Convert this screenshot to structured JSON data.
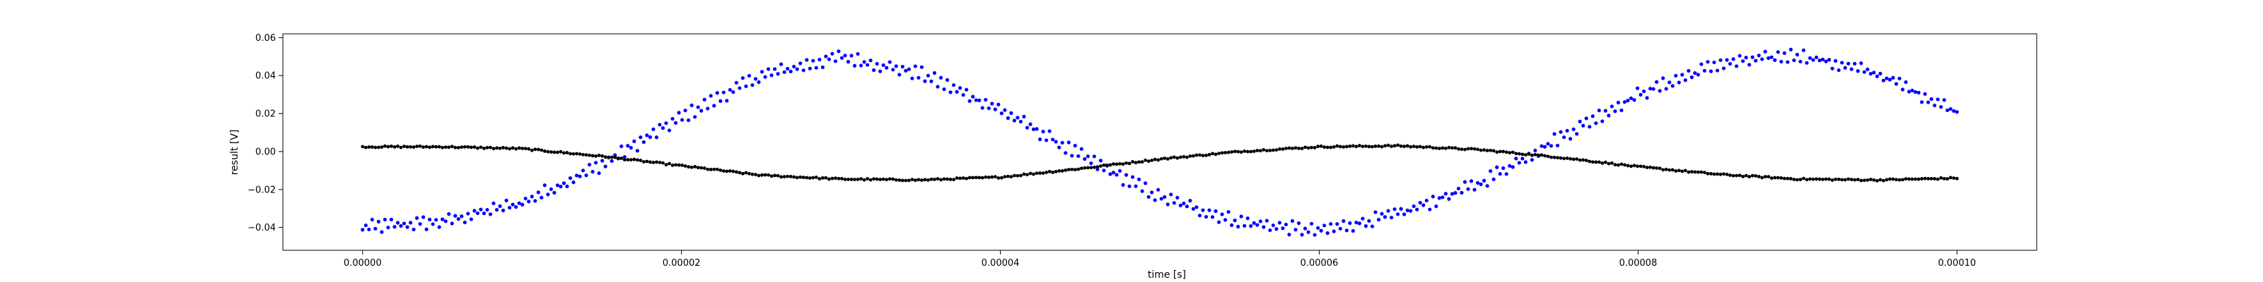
{
  "chart_data": {
    "type": "scatter",
    "title": "",
    "xlabel": "time [s]",
    "ylabel": "result [V]",
    "xlim": [
      -5e-06,
      0.000105
    ],
    "ylim": [
      -0.052,
      0.062
    ],
    "xticks": [
      0.0,
      2e-05,
      4e-05,
      6e-05,
      8e-05,
      0.0001
    ],
    "xtick_labels": [
      "0.00000",
      "0.00002",
      "0.00004",
      "0.00006",
      "0.00008",
      "0.00010"
    ],
    "yticks": [
      -0.04,
      -0.02,
      0.0,
      0.02,
      0.04,
      0.06
    ],
    "ytick_labels": [
      "−0.04",
      "−0.02",
      "0.00",
      "0.02",
      "0.04",
      "0.06"
    ],
    "grid": false,
    "legend": "none",
    "x_range": [
      0.0,
      0.0001
    ],
    "samples_per_trace": 500,
    "series": [
      {
        "color": "#0000ff",
        "marker": "dot",
        "description_points": [
          [
            0.0,
            -0.04
          ],
          [
            5e-06,
            -0.037
          ],
          [
            1e-05,
            -0.027
          ],
          [
            1.5e-05,
            -0.007
          ],
          [
            2e-05,
            0.018
          ],
          [
            2.5e-05,
            0.04
          ],
          [
            3e-05,
            0.05
          ],
          [
            3.5e-05,
            0.041
          ],
          [
            4e-05,
            0.022
          ],
          [
            4.5e-05,
            -0.002
          ],
          [
            5e-05,
            -0.024
          ],
          [
            5.5e-05,
            -0.037
          ],
          [
            6e-05,
            -0.042
          ],
          [
            6.5e-05,
            -0.033
          ],
          [
            7e-05,
            -0.017
          ],
          [
            7.5e-05,
            0.007
          ],
          [
            8e-05,
            0.03
          ],
          [
            8.5e-05,
            0.046
          ],
          [
            9e-05,
            0.051
          ],
          [
            9.5e-05,
            0.041
          ],
          [
            0.0001,
            0.021
          ]
        ]
      },
      {
        "color": "#000000",
        "marker": "dot",
        "description_points": [
          [
            0.0,
            0.0025
          ],
          [
            5e-06,
            0.0025
          ],
          [
            1e-05,
            0.0015
          ],
          [
            1.5e-05,
            -0.0025
          ],
          [
            2e-05,
            -0.0075
          ],
          [
            2.5e-05,
            -0.0125
          ],
          [
            3e-05,
            -0.0145
          ],
          [
            3.5e-05,
            -0.015
          ],
          [
            4e-05,
            -0.0135
          ],
          [
            4.5e-05,
            -0.009
          ],
          [
            5e-05,
            -0.004
          ],
          [
            5.5e-05,
            0.0
          ],
          [
            6e-05,
            0.0025
          ],
          [
            6.5e-05,
            0.003
          ],
          [
            7e-05,
            0.001
          ],
          [
            7.5e-05,
            -0.003
          ],
          [
            8e-05,
            -0.008
          ],
          [
            8.5e-05,
            -0.012
          ],
          [
            9e-05,
            -0.0145
          ],
          [
            9.5e-05,
            -0.015
          ],
          [
            0.0001,
            -0.014
          ]
        ]
      }
    ]
  }
}
